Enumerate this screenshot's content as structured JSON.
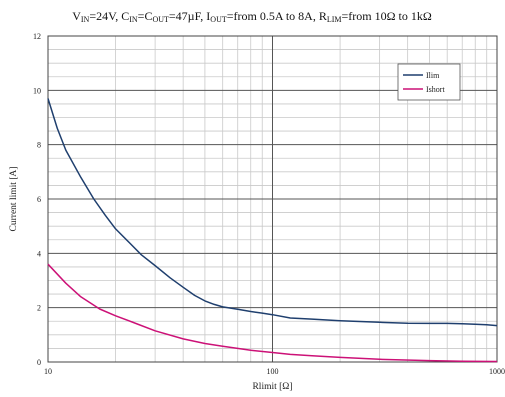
{
  "chart_data": {
    "type": "line",
    "title": {
      "parts": [
        {
          "text": "V"
        },
        {
          "text": "IN",
          "sub": true
        },
        {
          "text": "=24V, C"
        },
        {
          "text": "IN",
          "sub": true
        },
        {
          "text": "=C"
        },
        {
          "text": "OUT",
          "sub": true
        },
        {
          "text": "=47µF, I"
        },
        {
          "text": "OUT",
          "sub": true
        },
        {
          "text": "=from 0.5A to 8A, R"
        },
        {
          "text": "LIM",
          "sub": true
        },
        {
          "text": "=from 10Ω to 1kΩ"
        }
      ]
    },
    "xlabel": "Rlimit [Ω]",
    "ylabel": "Current limit [A]",
    "xscale": "log",
    "xlim": [
      10,
      1000
    ],
    "ylim": [
      0,
      12
    ],
    "xticks": [
      10,
      100,
      1000
    ],
    "xtick_labels": [
      "10",
      "100",
      "1000"
    ],
    "yticks": [
      0,
      2,
      4,
      6,
      8,
      10,
      12
    ],
    "grid": true,
    "legend_position": "top-right",
    "series": [
      {
        "name": "Ilim",
        "color": "#1f3f6e",
        "x": [
          10,
          11,
          12,
          14,
          16,
          18,
          20,
          23,
          26,
          30,
          35,
          40,
          45,
          50,
          55,
          60,
          70,
          80,
          90,
          100,
          120,
          150,
          200,
          300,
          400,
          500,
          600,
          700,
          800,
          900,
          1000
        ],
        "y": [
          9.7,
          8.6,
          7.8,
          6.8,
          6.0,
          5.4,
          4.9,
          4.4,
          3.95,
          3.55,
          3.1,
          2.75,
          2.45,
          2.25,
          2.12,
          2.03,
          1.94,
          1.86,
          1.8,
          1.74,
          1.62,
          1.58,
          1.52,
          1.46,
          1.43,
          1.42,
          1.42,
          1.41,
          1.39,
          1.37,
          1.34
        ]
      },
      {
        "name": "Ishort",
        "color": "#cc1177",
        "x": [
          10,
          12,
          14,
          17,
          20,
          25,
          30,
          40,
          50,
          60,
          80,
          100,
          120,
          150,
          200,
          300,
          500,
          700,
          1000
        ],
        "y": [
          3.6,
          2.9,
          2.4,
          1.95,
          1.7,
          1.4,
          1.15,
          0.85,
          0.68,
          0.58,
          0.43,
          0.35,
          0.28,
          0.23,
          0.17,
          0.1,
          0.05,
          0.03,
          0.02
        ]
      }
    ]
  }
}
